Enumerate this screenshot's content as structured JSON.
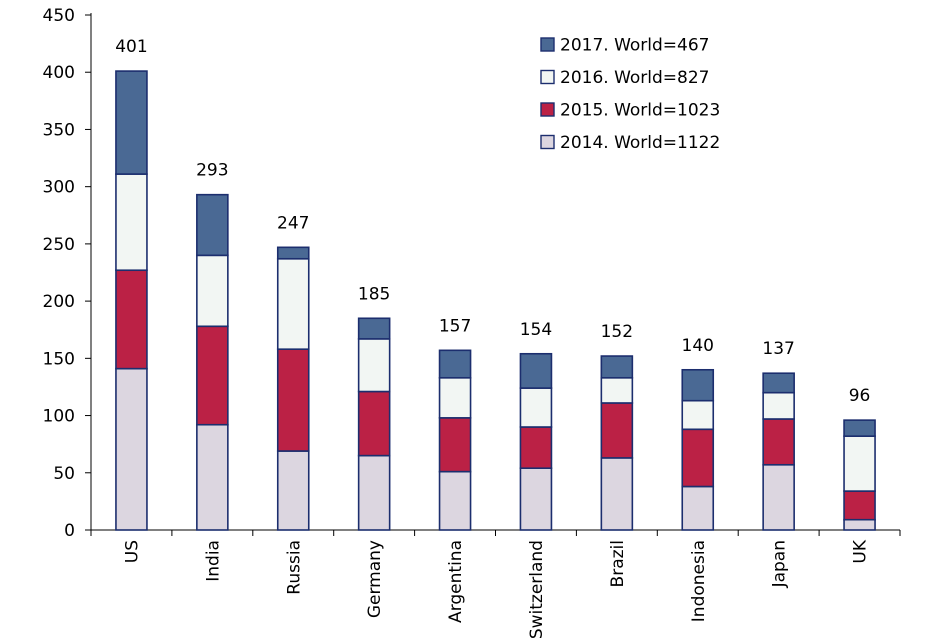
{
  "chart_data": {
    "type": "bar",
    "stacked": true,
    "title": "",
    "xlabel": "",
    "ylabel": "",
    "ylim": [
      0,
      450
    ],
    "yticks": [
      0,
      50,
      100,
      150,
      200,
      250,
      300,
      350,
      400,
      450
    ],
    "grid": false,
    "legend_position": "top-right",
    "categories": [
      "US",
      "India",
      "Russia",
      "Germany",
      "Argentina",
      "Switzerland",
      "Brazil",
      "Indonesia",
      "Japan",
      "UK"
    ],
    "totals": [
      401,
      293,
      247,
      185,
      157,
      154,
      152,
      140,
      137,
      96
    ],
    "series": [
      {
        "name": "2014. World=1122",
        "color": "#dcd6e0",
        "values": [
          141,
          92,
          69,
          65,
          51,
          54,
          63,
          38,
          57,
          9
        ]
      },
      {
        "name": "2015. World=1023",
        "color": "#bb2145",
        "values": [
          86,
          86,
          89,
          56,
          47,
          36,
          48,
          50,
          40,
          25
        ]
      },
      {
        "name": "2016. World=827",
        "color": "#f2f6f3",
        "values": [
          84,
          62,
          79,
          46,
          35,
          34,
          22,
          25,
          23,
          48
        ]
      },
      {
        "name": "2017. World=467",
        "color": "#4a6994",
        "values": [
          90,
          53,
          10,
          18,
          24,
          30,
          19,
          27,
          17,
          14
        ]
      }
    ],
    "legend_order": [
      "2017. World=467",
      "2016. World=827",
      "2015. World=1023",
      "2014. World=1122"
    ],
    "stroke_color": "#1c2e6e"
  }
}
